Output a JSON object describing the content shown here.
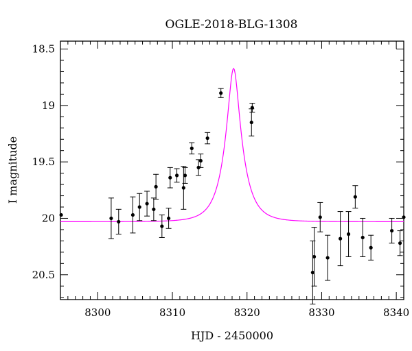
{
  "chart_data": {
    "type": "scatter",
    "title": "OGLE-2018-BLG-1308",
    "xlabel": "HJD - 2450000",
    "ylabel": "I magnitude",
    "xlim": [
      8295,
      8341
    ],
    "ylim": [
      20.72,
      18.43
    ],
    "y_inverted": true,
    "x_ticks": [
      8300,
      8310,
      8320,
      8330,
      8340
    ],
    "x_tick_labels": [
      "8300",
      "8310",
      "8320",
      "8330",
      "8340"
    ],
    "y_ticks": [
      18.5,
      19,
      19.5,
      20,
      20.5
    ],
    "y_tick_labels": [
      "18.5",
      "19",
      "19.5",
      "20",
      "20.5"
    ],
    "grid": false,
    "model_color": "#ff00ff",
    "model": {
      "t0": 8318.2,
      "tE": 2.3,
      "baseline_mag": 20.03,
      "peak_mag": 18.68
    },
    "series": [
      {
        "points": [
          {
            "x": 8295.1,
            "y": 19.97,
            "err": 0.0
          },
          {
            "x": 8301.8,
            "y": 20.0,
            "err": 0.18
          },
          {
            "x": 8302.8,
            "y": 20.03,
            "err": 0.11
          },
          {
            "x": 8304.7,
            "y": 19.97,
            "err": 0.16
          },
          {
            "x": 8305.6,
            "y": 19.9,
            "err": 0.12
          },
          {
            "x": 8306.6,
            "y": 19.87,
            "err": 0.11
          },
          {
            "x": 8307.5,
            "y": 19.92,
            "err": 0.1
          },
          {
            "x": 8307.8,
            "y": 19.72,
            "err": 0.11
          },
          {
            "x": 8308.6,
            "y": 20.07,
            "err": 0.1
          },
          {
            "x": 8309.5,
            "y": 20.0,
            "err": 0.09
          },
          {
            "x": 8309.7,
            "y": 19.64,
            "err": 0.09
          },
          {
            "x": 8310.6,
            "y": 19.62,
            "err": 0.06
          },
          {
            "x": 8311.5,
            "y": 19.73,
            "err": 0.19
          },
          {
            "x": 8311.7,
            "y": 19.62,
            "err": 0.07
          },
          {
            "x": 8312.6,
            "y": 19.38,
            "err": 0.05
          },
          {
            "x": 8313.5,
            "y": 19.55,
            "err": 0.07
          },
          {
            "x": 8313.8,
            "y": 19.49,
            "err": 0.06
          },
          {
            "x": 8314.7,
            "y": 19.29,
            "err": 0.05
          },
          {
            "x": 8316.5,
            "y": 18.89,
            "err": 0.04
          },
          {
            "x": 8320.6,
            "y": 19.15,
            "err": 0.12
          },
          {
            "x": 8320.7,
            "y": 19.02,
            "err": 0.04
          },
          {
            "x": 8328.8,
            "y": 20.48,
            "err": 0.28
          },
          {
            "x": 8329.0,
            "y": 20.34,
            "err": 0.26
          },
          {
            "x": 8329.8,
            "y": 19.99,
            "err": 0.13
          },
          {
            "x": 8330.8,
            "y": 20.35,
            "err": 0.2
          },
          {
            "x": 8332.5,
            "y": 20.18,
            "err": 0.24
          },
          {
            "x": 8333.6,
            "y": 20.14,
            "err": 0.2
          },
          {
            "x": 8334.5,
            "y": 19.81,
            "err": 0.1
          },
          {
            "x": 8335.5,
            "y": 20.17,
            "err": 0.17
          },
          {
            "x": 8336.6,
            "y": 20.26,
            "err": 0.11
          },
          {
            "x": 8339.4,
            "y": 20.11,
            "err": 0.11
          },
          {
            "x": 8340.5,
            "y": 20.22,
            "err": 0.11
          },
          {
            "x": 8341.0,
            "y": 19.99,
            "err": 0.0
          }
        ]
      }
    ]
  }
}
